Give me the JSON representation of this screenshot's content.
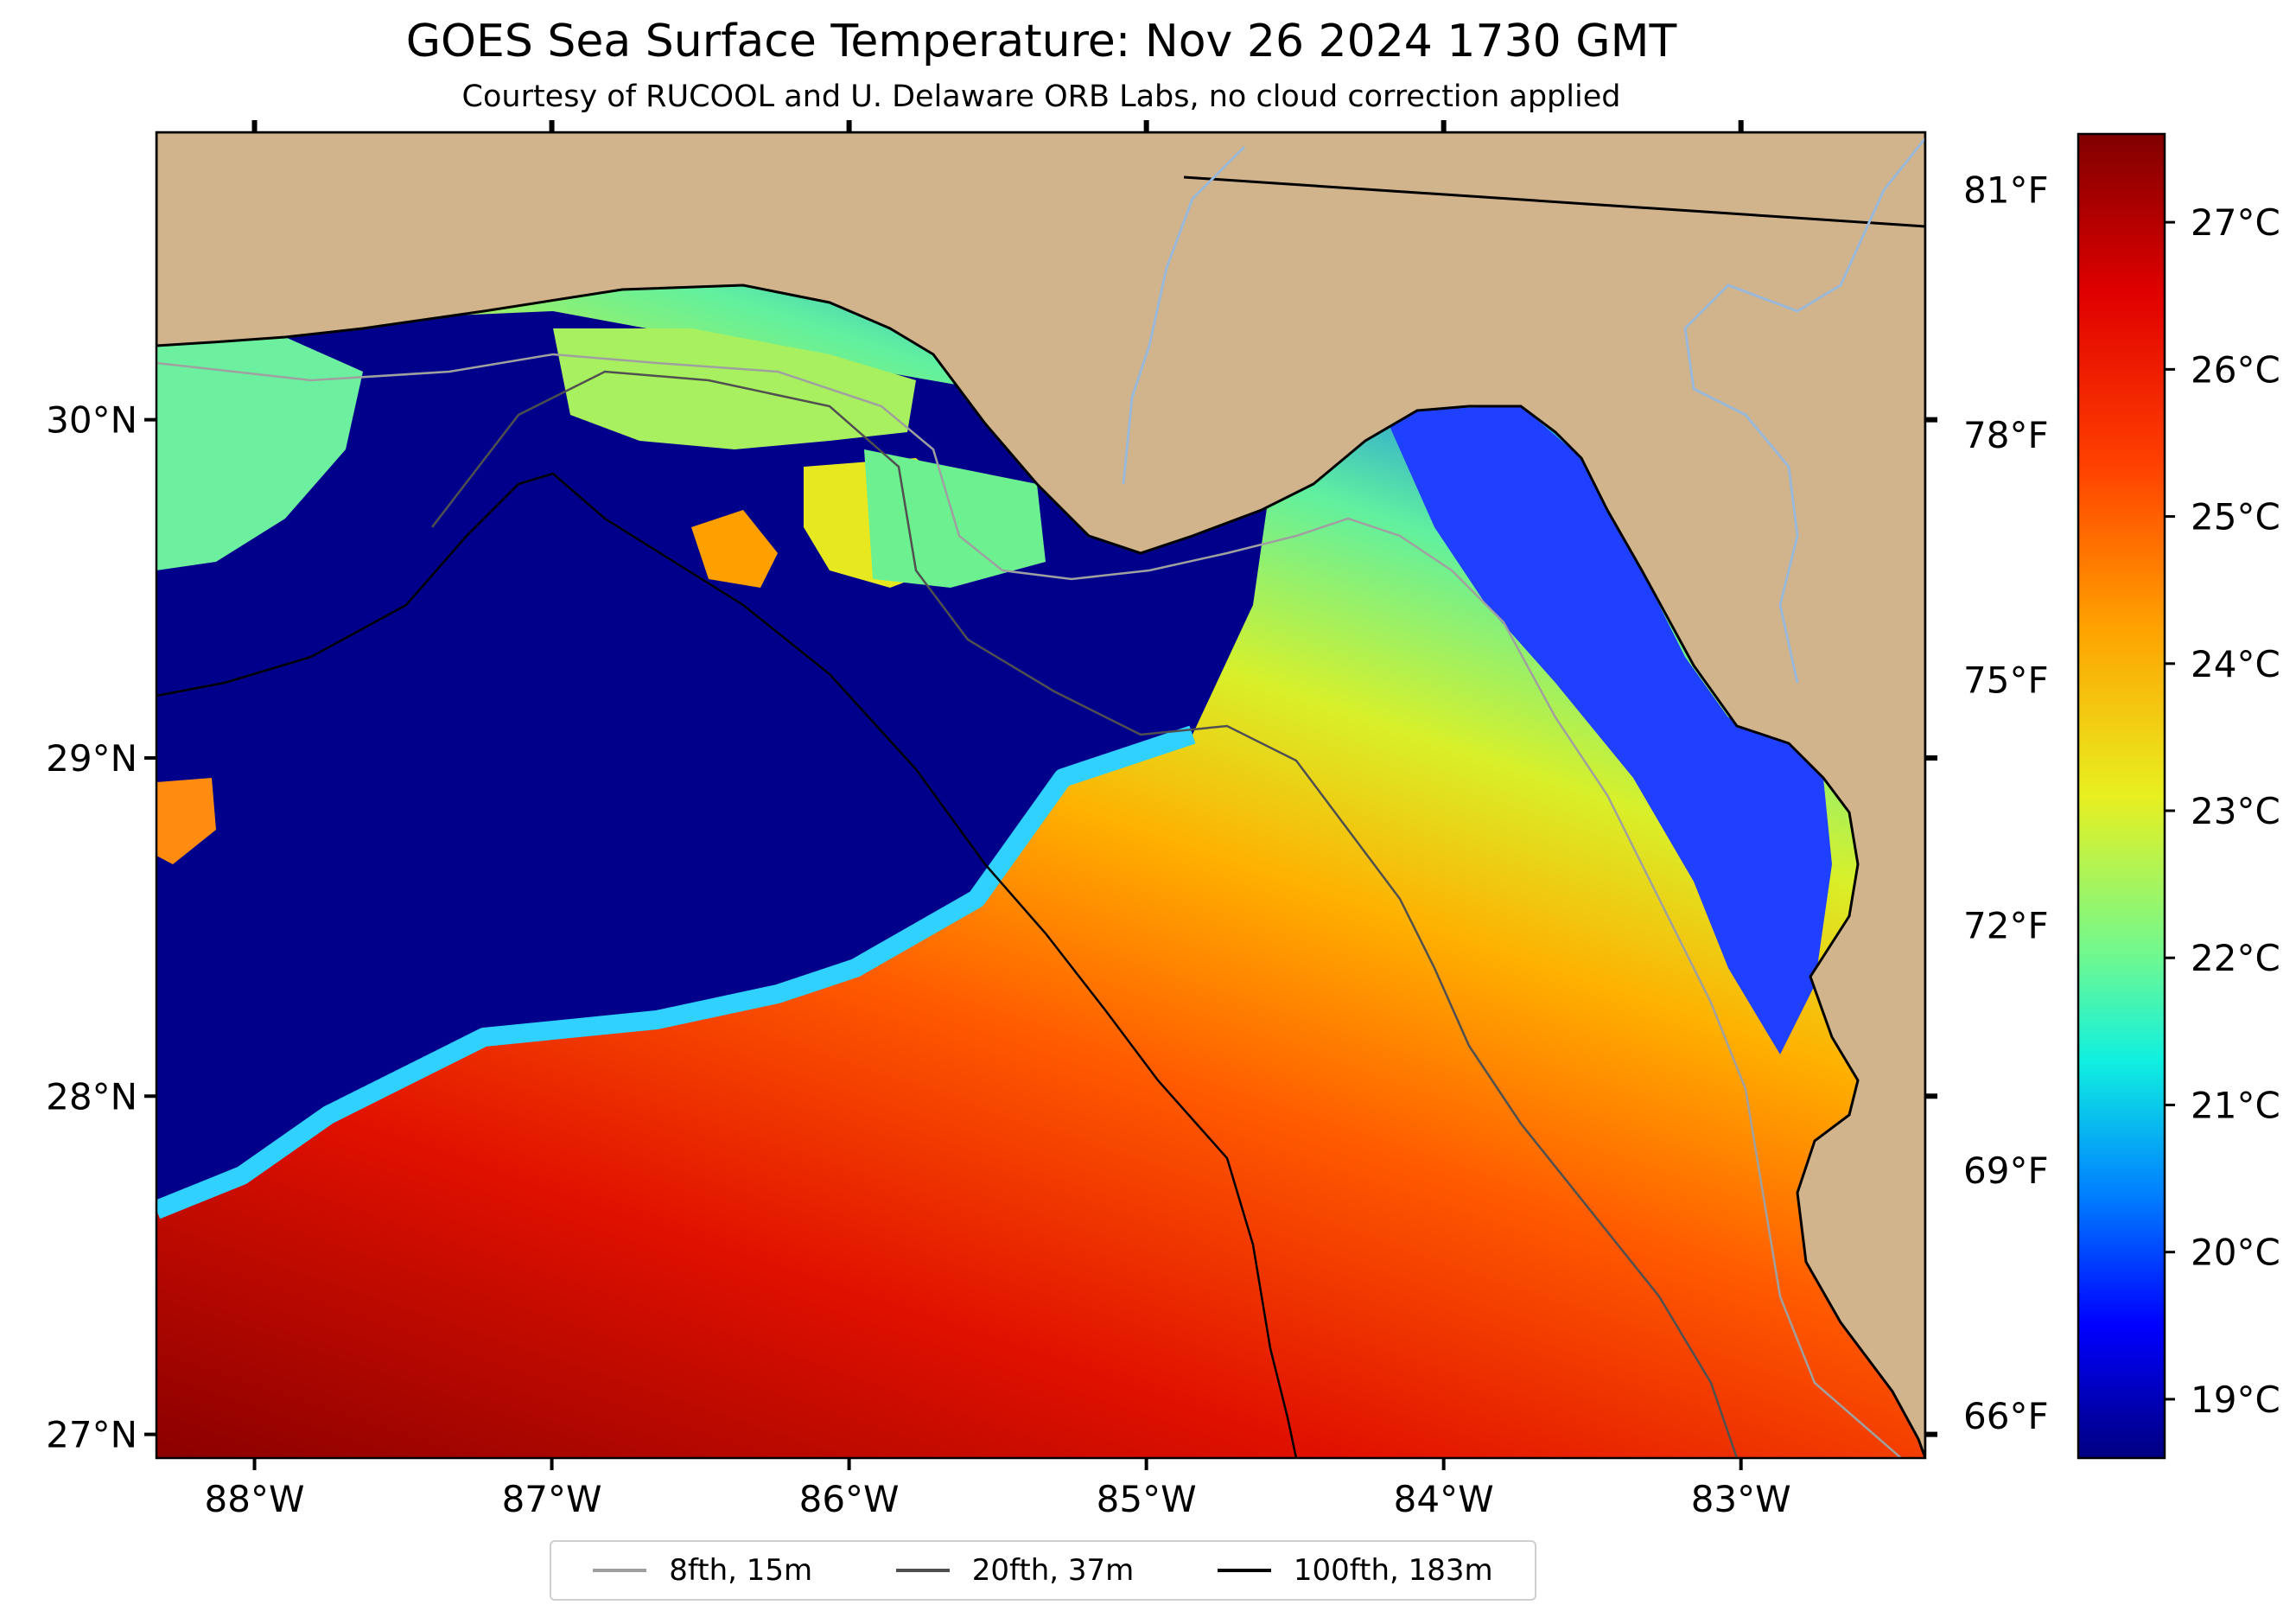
{
  "title": "GOES Sea Surface Temperature: Nov 26 2024 1730 GMT",
  "subtitle": "Courtesy of RUCOOL and U. Delaware ORB Labs, no cloud correction applied",
  "colors": {
    "land": "#d2b48c",
    "cold": "#00008b",
    "warm": "#8b0000",
    "contour_8fth": "#a0a0a0",
    "contour_20fth": "#505050",
    "contour_100fth": "#000000"
  },
  "map": {
    "lon_range": [
      -88.33,
      -82.38
    ],
    "lat_range": [
      26.93,
      30.85
    ],
    "lon_ticks": [
      {
        "value": -88,
        "label": "88°W"
      },
      {
        "value": -87,
        "label": "87°W"
      },
      {
        "value": -86,
        "label": "86°W"
      },
      {
        "value": -85,
        "label": "85°W"
      },
      {
        "value": -84,
        "label": "84°W"
      },
      {
        "value": -83,
        "label": "83°W"
      }
    ],
    "lat_ticks": [
      {
        "value": 30,
        "label": "30°N"
      },
      {
        "value": 29,
        "label": "29°N"
      },
      {
        "value": 28,
        "label": "28°N"
      },
      {
        "value": 27,
        "label": "27°N"
      }
    ]
  },
  "colorbar": {
    "range_c": [
      18.6,
      27.6
    ],
    "celsius_ticks": [
      {
        "value": 27,
        "label": "27°C"
      },
      {
        "value": 26,
        "label": "26°C"
      },
      {
        "value": 25,
        "label": "25°C"
      },
      {
        "value": 24,
        "label": "24°C"
      },
      {
        "value": 23,
        "label": "23°C"
      },
      {
        "value": 22,
        "label": "22°C"
      },
      {
        "value": 21,
        "label": "21°C"
      },
      {
        "value": 20,
        "label": "20°C"
      },
      {
        "value": 19,
        "label": "19°C"
      }
    ],
    "fahrenheit_ticks": [
      {
        "value": 81,
        "label": "81°F"
      },
      {
        "value": 78,
        "label": "78°F"
      },
      {
        "value": 75,
        "label": "75°F"
      },
      {
        "value": 72,
        "label": "72°F"
      },
      {
        "value": 69,
        "label": "69°F"
      },
      {
        "value": 66,
        "label": "66°F"
      }
    ]
  },
  "legend": [
    {
      "label": "8fth, 15m",
      "color": "#a0a0a0"
    },
    {
      "label": "20fth, 37m",
      "color": "#505050"
    },
    {
      "label": "100fth, 183m",
      "color": "#000000"
    }
  ]
}
